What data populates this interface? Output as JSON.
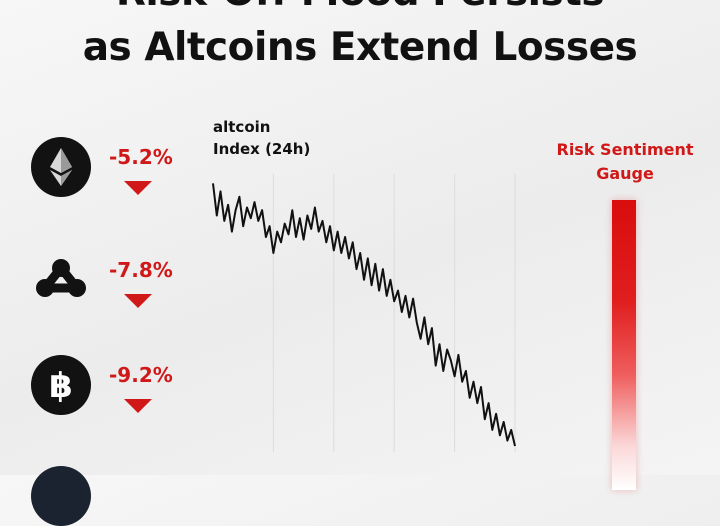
{
  "headline": {
    "line1": "Risk-Off Mood Persists",
    "line2": "as Altcoins Extend Losses"
  },
  "coins": [
    {
      "icon": "ethereum-icon",
      "change": "-5.2%",
      "direction": "down"
    },
    {
      "icon": "xrp-icon",
      "change": "-7.8%",
      "direction": "down"
    },
    {
      "icon": "bitcoin-icon",
      "change": "-9.2%",
      "direction": "down"
    }
  ],
  "gauge": {
    "title_line1": "Risk Sentiment",
    "title_line2": "Gauge",
    "level": 1.0,
    "color_top": "#d90d0d"
  },
  "colors": {
    "negative": "#d01818",
    "line": "#111111"
  },
  "chart_data": {
    "type": "line",
    "title_line1": "altcoin",
    "title_line2": "Index (24h)",
    "xlabel": "",
    "ylabel": "",
    "xlim": [
      0,
      24
    ],
    "ylim": [
      0,
      100
    ],
    "grid": "vertical",
    "x_gridlines": [
      4.8,
      9.6,
      14.4,
      19.2,
      24
    ],
    "series": [
      {
        "values": [
          [
            0.0,
            98
          ],
          [
            0.3,
            86
          ],
          [
            0.6,
            95
          ],
          [
            0.9,
            84
          ],
          [
            1.2,
            90
          ],
          [
            1.5,
            80
          ],
          [
            1.8,
            88
          ],
          [
            2.1,
            93
          ],
          [
            2.4,
            82
          ],
          [
            2.7,
            89
          ],
          [
            3.0,
            85
          ],
          [
            3.3,
            91
          ],
          [
            3.6,
            84
          ],
          [
            3.9,
            88
          ],
          [
            4.2,
            78
          ],
          [
            4.5,
            82
          ],
          [
            4.8,
            72
          ],
          [
            5.1,
            80
          ],
          [
            5.4,
            76
          ],
          [
            5.7,
            83
          ],
          [
            6.0,
            79
          ],
          [
            6.3,
            88
          ],
          [
            6.6,
            78
          ],
          [
            6.9,
            85
          ],
          [
            7.2,
            77
          ],
          [
            7.5,
            86
          ],
          [
            7.8,
            81
          ],
          [
            8.1,
            89
          ],
          [
            8.4,
            80
          ],
          [
            8.7,
            84
          ],
          [
            9.0,
            76
          ],
          [
            9.3,
            82
          ],
          [
            9.6,
            73
          ],
          [
            9.9,
            80
          ],
          [
            10.2,
            72
          ],
          [
            10.5,
            78
          ],
          [
            10.8,
            70
          ],
          [
            11.1,
            76
          ],
          [
            11.4,
            66
          ],
          [
            11.7,
            72
          ],
          [
            12.0,
            62
          ],
          [
            12.3,
            70
          ],
          [
            12.6,
            60
          ],
          [
            12.9,
            68
          ],
          [
            13.2,
            58
          ],
          [
            13.5,
            66
          ],
          [
            13.8,
            56
          ],
          [
            14.1,
            62
          ],
          [
            14.4,
            54
          ],
          [
            14.7,
            58
          ],
          [
            15.0,
            50
          ],
          [
            15.3,
            56
          ],
          [
            15.6,
            48
          ],
          [
            15.9,
            55
          ],
          [
            16.2,
            46
          ],
          [
            16.5,
            40
          ],
          [
            16.8,
            48
          ],
          [
            17.1,
            38
          ],
          [
            17.4,
            44
          ],
          [
            17.7,
            30
          ],
          [
            18.0,
            38
          ],
          [
            18.3,
            28
          ],
          [
            18.6,
            36
          ],
          [
            18.9,
            32
          ],
          [
            19.2,
            26
          ],
          [
            19.5,
            34
          ],
          [
            19.8,
            24
          ],
          [
            20.1,
            28
          ],
          [
            20.4,
            18
          ],
          [
            20.7,
            24
          ],
          [
            21.0,
            16
          ],
          [
            21.3,
            22
          ],
          [
            21.6,
            10
          ],
          [
            21.9,
            16
          ],
          [
            22.2,
            6
          ],
          [
            22.5,
            12
          ],
          [
            22.8,
            4
          ],
          [
            23.1,
            9
          ],
          [
            23.4,
            2
          ],
          [
            23.7,
            6
          ],
          [
            24.0,
            0
          ]
        ]
      }
    ]
  }
}
